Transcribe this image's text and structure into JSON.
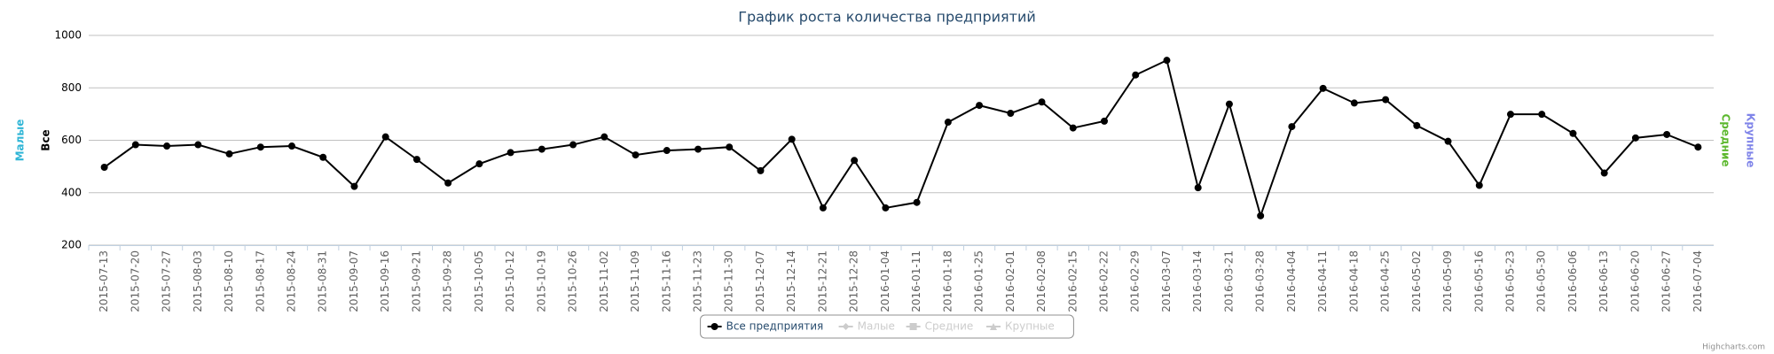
{
  "chart_data": {
    "type": "line",
    "title": "График роста количества предприятий",
    "categories": [
      "2015-07-13",
      "2015-07-20",
      "2015-07-27",
      "2015-08-03",
      "2015-08-10",
      "2015-08-17",
      "2015-08-24",
      "2015-08-31",
      "2015-09-07",
      "2015-09-16",
      "2015-09-21",
      "2015-09-28",
      "2015-10-05",
      "2015-10-12",
      "2015-10-19",
      "2015-10-26",
      "2015-11-02",
      "2015-11-09",
      "2015-11-16",
      "2015-11-23",
      "2015-11-30",
      "2015-12-07",
      "2015-12-14",
      "2015-12-21",
      "2015-12-28",
      "2016-01-04",
      "2016-01-11",
      "2016-01-18",
      "2016-01-25",
      "2016-02-01",
      "2016-02-08",
      "2016-02-15",
      "2016-02-22",
      "2016-02-29",
      "2016-03-07",
      "2016-03-14",
      "2016-03-21",
      "2016-03-28",
      "2016-04-04",
      "2016-04-11",
      "2016-04-18",
      "2016-04-25",
      "2016-05-02",
      "2016-05-09",
      "2016-05-16",
      "2016-05-23",
      "2016-05-30",
      "2016-06-06",
      "2016-06-13",
      "2016-06-20",
      "2016-06-27",
      "2016-07-04"
    ],
    "series": [
      {
        "name": "Все предприятия",
        "color": "#000000",
        "marker": "circle",
        "visible": true,
        "values": [
          497,
          583,
          578,
          583,
          548,
          574,
          578,
          535,
          424,
          613,
          527,
          437,
          510,
          553,
          566,
          583,
          613,
          544,
          561,
          566,
          574,
          484,
          604,
          342,
          523,
          342,
          363,
          669,
          733,
          703,
          746,
          647,
          673,
          849,
          905,
          419,
          738,
          312,
          652,
          798,
          742,
          755,
          656,
          596,
          428,
          699,
          699,
          626,
          475,
          609,
          622,
          574
        ]
      },
      {
        "name": "Малые",
        "color": "#2fb5d6",
        "marker": "diamond",
        "visible": false
      },
      {
        "name": "Средние",
        "color": "#5cb82e",
        "marker": "square",
        "visible": false
      },
      {
        "name": "Крупные",
        "color": "#8085e9",
        "marker": "triangle",
        "visible": false
      }
    ],
    "axis_titles": [
      {
        "label": "Малые",
        "color": "#2fb5d6",
        "side": "left"
      },
      {
        "label": "Все",
        "color": "#000000",
        "side": "left"
      },
      {
        "label": "Средние",
        "color": "#5cb82e",
        "side": "right"
      },
      {
        "label": "Крупные",
        "color": "#8085e9",
        "side": "right"
      }
    ],
    "ylim": [
      200,
      1000
    ],
    "yticks": [
      200,
      400,
      600,
      800,
      1000
    ],
    "grid": true,
    "legend": "bottom",
    "credits": "Highcharts.com"
  }
}
